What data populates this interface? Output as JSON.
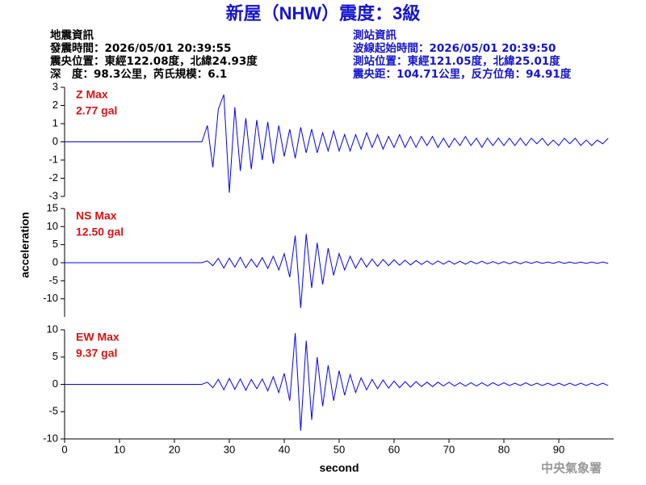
{
  "header": {
    "title": "新屋（NHW）震度：3級",
    "left": [
      "地震資訊",
      "發震時間：2026/05/01 20:39:55",
      "震央位置：東經122.08度，北緯24.93度",
      "深　度：98.3公里，芮氏規模：6.1"
    ],
    "right": [
      "測站資訊",
      "波線起始時間：2026/05/01 20:39:50",
      "測站位置：東經121.05度，北緯25.01度",
      "震央距：104.71公里，反方位角：94.91度"
    ]
  },
  "y_label": "acceleration",
  "footer": "中央氣象署",
  "chart_data": [
    {
      "type": "line",
      "label": "Z Max",
      "max_label": "2.77 gal",
      "color": "#0000ff",
      "xlim": [
        0,
        100
      ],
      "ylim": [
        -3,
        3
      ],
      "yticks": [
        -3,
        -2,
        -1,
        0,
        1,
        2,
        3
      ],
      "x": [
        0,
        25,
        26,
        27,
        28,
        29,
        30,
        31,
        32,
        33,
        34,
        35,
        36,
        37,
        38,
        39,
        40,
        41,
        42,
        43,
        44,
        45,
        46,
        47,
        48,
        49,
        50,
        51,
        52,
        53,
        54,
        55,
        56,
        57,
        58,
        59,
        60,
        61,
        62,
        63,
        64,
        65,
        66,
        67,
        68,
        69,
        70,
        71,
        72,
        73,
        74,
        75,
        76,
        77,
        78,
        79,
        80,
        81,
        82,
        83,
        84,
        85,
        86,
        87,
        88,
        89,
        90,
        91,
        92,
        93,
        94,
        95,
        96,
        97,
        98,
        99
      ],
      "values": [
        0,
        0,
        0.9,
        -1.4,
        1.8,
        2.6,
        -2.8,
        1.9,
        -1.6,
        1.3,
        -1.5,
        1.2,
        -1.0,
        1.1,
        -1.2,
        0.9,
        -0.8,
        0.7,
        -0.9,
        0.8,
        -0.6,
        0.7,
        -0.6,
        0.5,
        -0.5,
        0.6,
        -0.5,
        0.4,
        -0.5,
        0.4,
        -0.4,
        0.5,
        -0.3,
        0.4,
        -0.4,
        0.3,
        -0.3,
        0.4,
        -0.3,
        0.3,
        -0.3,
        0.3,
        -0.2,
        0.3,
        -0.3,
        0.2,
        -0.3,
        0.2,
        -0.2,
        0.3,
        -0.2,
        0.2,
        -0.3,
        0.2,
        -0.2,
        0.2,
        -0.2,
        0.2,
        -0.2,
        0.2,
        -0.2,
        0.2,
        -0.1,
        0.2,
        -0.2,
        0.1,
        -0.2,
        0.2,
        -0.1,
        0.2,
        -0.2,
        0.1,
        -0.2,
        0.1,
        -0.1,
        0.2
      ]
    },
    {
      "type": "line",
      "label": "NS Max",
      "max_label": "12.50 gal",
      "color": "#0000ff",
      "xlim": [
        0,
        100
      ],
      "ylim": [
        -15,
        15
      ],
      "yticks": [
        -10,
        -5,
        0,
        5,
        10,
        15
      ],
      "x": [
        0,
        25,
        26,
        27,
        28,
        29,
        30,
        31,
        32,
        33,
        34,
        35,
        36,
        37,
        38,
        39,
        40,
        41,
        42,
        43,
        44,
        45,
        46,
        47,
        48,
        49,
        50,
        51,
        52,
        53,
        54,
        55,
        56,
        57,
        58,
        59,
        60,
        61,
        62,
        63,
        64,
        65,
        66,
        67,
        68,
        69,
        70,
        71,
        72,
        73,
        74,
        75,
        76,
        77,
        78,
        79,
        80,
        81,
        82,
        83,
        84,
        85,
        86,
        87,
        88,
        89,
        90,
        91,
        92,
        93,
        94,
        95,
        96,
        97,
        98,
        99
      ],
      "values": [
        0,
        0,
        0.5,
        -0.8,
        1.2,
        -1.5,
        1.3,
        -1.2,
        1.5,
        -1.4,
        1.0,
        -1.2,
        1.4,
        -1.6,
        1.8,
        -2.0,
        2.5,
        -4.0,
        7.5,
        -12.5,
        8.0,
        -7.0,
        5.5,
        -6.0,
        4.0,
        -3.5,
        2.5,
        -2.0,
        1.8,
        -1.5,
        1.3,
        -1.2,
        1.0,
        -1.0,
        0.9,
        -0.8,
        0.8,
        -0.7,
        0.7,
        -0.6,
        0.6,
        -0.5,
        0.5,
        -0.5,
        0.5,
        -0.4,
        0.5,
        -0.4,
        0.4,
        -0.4,
        0.4,
        -0.3,
        0.4,
        -0.3,
        0.3,
        -0.3,
        0.3,
        -0.3,
        0.3,
        -0.3,
        0.3,
        -0.2,
        0.3,
        -0.2,
        0.2,
        -0.2,
        0.3,
        -0.2,
        0.2,
        -0.2,
        0.2,
        -0.2,
        0.2,
        -0.2,
        0.2,
        -0.2
      ]
    },
    {
      "type": "line",
      "label": "EW Max",
      "max_label": "9.37 gal",
      "color": "#0000ff",
      "xlim": [
        0,
        100
      ],
      "ylim": [
        -10,
        10
      ],
      "yticks": [
        -10,
        -5,
        0,
        5,
        10
      ],
      "xticks": [
        0,
        10,
        20,
        30,
        40,
        50,
        60,
        70,
        80,
        90
      ],
      "x_label": "second",
      "x": [
        0,
        25,
        26,
        27,
        28,
        29,
        30,
        31,
        32,
        33,
        34,
        35,
        36,
        37,
        38,
        39,
        40,
        41,
        42,
        43,
        44,
        45,
        46,
        47,
        48,
        49,
        50,
        51,
        52,
        53,
        54,
        55,
        56,
        57,
        58,
        59,
        60,
        61,
        62,
        63,
        64,
        65,
        66,
        67,
        68,
        69,
        70,
        71,
        72,
        73,
        74,
        75,
        76,
        77,
        78,
        79,
        80,
        81,
        82,
        83,
        84,
        85,
        86,
        87,
        88,
        89,
        90,
        91,
        92,
        93,
        94,
        95,
        96,
        97,
        98,
        99
      ],
      "values": [
        0,
        0,
        0.4,
        -0.6,
        0.9,
        -1.0,
        1.1,
        -0.9,
        1.0,
        -1.1,
        0.9,
        -0.8,
        1.0,
        -1.2,
        1.4,
        -1.5,
        2.0,
        -3.0,
        9.4,
        -8.5,
        8.0,
        -6.5,
        5.0,
        -4.0,
        3.5,
        -3.0,
        2.5,
        -2.0,
        1.8,
        -1.5,
        1.2,
        -1.0,
        0.9,
        -0.8,
        0.8,
        -0.7,
        0.6,
        -0.6,
        0.5,
        -0.5,
        0.5,
        -0.4,
        0.4,
        -0.4,
        0.4,
        -0.3,
        0.4,
        -0.3,
        0.3,
        -0.3,
        0.3,
        -0.3,
        0.3,
        -0.3,
        0.3,
        -0.2,
        0.3,
        -0.2,
        0.2,
        -0.2,
        0.3,
        -0.2,
        0.2,
        -0.2,
        0.2,
        -0.2,
        0.2,
        -0.2,
        0.2,
        -0.2,
        0.2,
        -0.2,
        0.2,
        -0.2,
        0.2,
        -0.2
      ]
    }
  ]
}
